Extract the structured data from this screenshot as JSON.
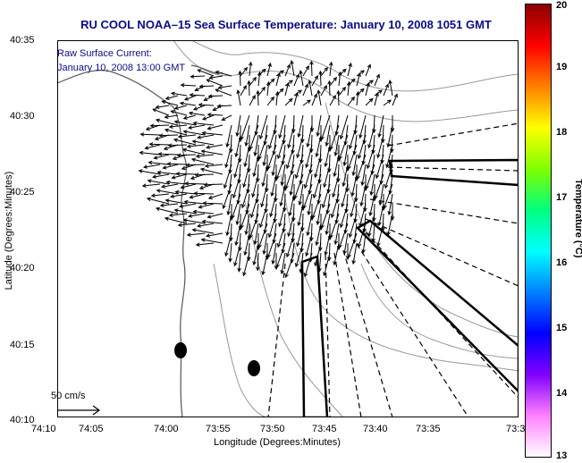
{
  "title": "RU COOL  NOAA–15  Sea Surface Temperature:  January 10, 2008 1051 GMT",
  "annotation": {
    "line1": "Raw Surface Current:",
    "line2": "January 10, 2008 13:00 GMT"
  },
  "axes": {
    "xlabel": "Longitude (Degrees:Minutes)",
    "ylabel": "Latitude (Degrees:Minutes)",
    "xticks": [
      "74:10",
      "74:05",
      "74:00",
      "73:55",
      "73:50",
      "73:45",
      "73:40",
      "73:35",
      "73:3"
    ],
    "yticks": [
      "40:35",
      "40:30",
      "40:25",
      "40:20",
      "40:15",
      "40:10"
    ]
  },
  "scale": {
    "label": "50 cm/s"
  },
  "colorbar": {
    "label": "Temperature (°C)",
    "ticks": [
      "20",
      "19",
      "18",
      "17",
      "16",
      "15",
      "14",
      "13"
    ],
    "colors": [
      "#8b0000",
      "#ff0000",
      "#ff8000",
      "#ffff00",
      "#80ff00",
      "#00ff80",
      "#00ffff",
      "#0080ff",
      "#0000ff",
      "#8000ff",
      "#ff80ff",
      "#ffffff"
    ]
  },
  "map_style": {
    "frame": "#000000",
    "contour": "#999999",
    "coast": "#555555",
    "arrow": "#000000"
  }
}
